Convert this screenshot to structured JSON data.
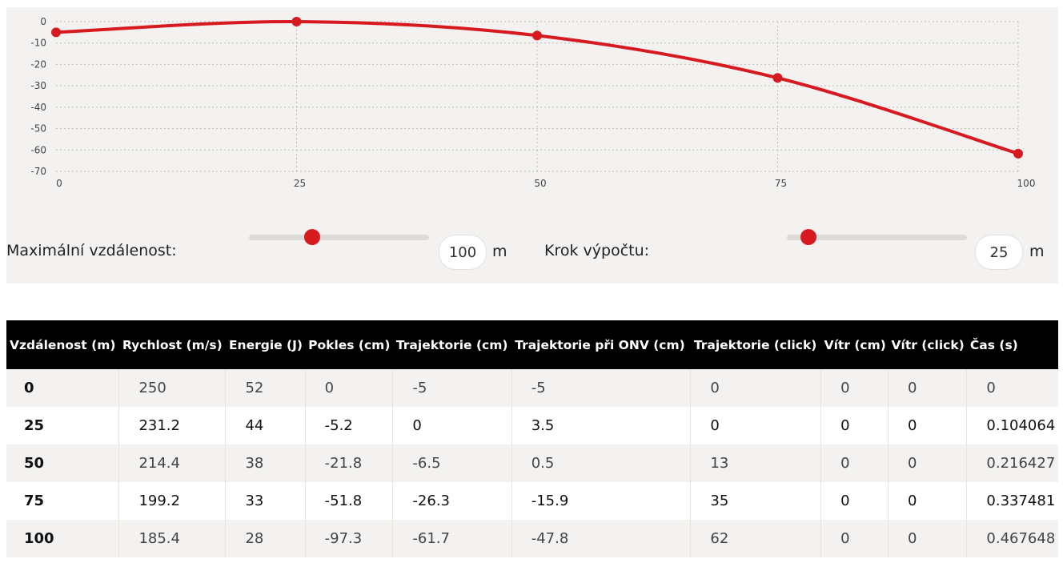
{
  "chart_data": {
    "type": "line",
    "x": [
      0,
      25,
      50,
      75,
      100
    ],
    "series": [
      {
        "values": [
          -5,
          0,
          -6.5,
          -26.3,
          -61.7
        ]
      }
    ],
    "xlim": [
      0,
      100
    ],
    "ylim": [
      -70,
      0
    ],
    "x_ticks": [
      "0",
      "25",
      "50",
      "75",
      "100"
    ],
    "y_ticks": [
      "0",
      "-10",
      "-20",
      "-30",
      "-40",
      "-50",
      "-60",
      "-70"
    ],
    "grid": true,
    "color": "#d71920"
  },
  "controls": {
    "max_distance": {
      "label": "Maximální vzdálenost:",
      "value": "100",
      "unit": "m",
      "slider_fraction": 0.35
    },
    "step": {
      "label": "Krok výpočtu:",
      "value": "25",
      "unit": "m",
      "slider_fraction": 0.12
    }
  },
  "table": {
    "headers": [
      "Vzdálenost (m)",
      "Rychlost (m/s)",
      "Energie (J)",
      "Pokles (cm)",
      "Trajektorie (cm)",
      "Trajektorie při ONV (cm)",
      "Trajektorie (click)",
      "Vítr (cm)",
      "Vítr (click)",
      "Čas (s)"
    ],
    "rows": [
      [
        "0",
        "250",
        "52",
        "0",
        "-5",
        "-5",
        "0",
        "0",
        "0",
        "0"
      ],
      [
        "25",
        "231.2",
        "44",
        "-5.2",
        "0",
        "3.5",
        "0",
        "0",
        "0",
        "0.104064"
      ],
      [
        "50",
        "214.4",
        "38",
        "-21.8",
        "-6.5",
        "0.5",
        "13",
        "0",
        "0",
        "0.216427"
      ],
      [
        "75",
        "199.2",
        "33",
        "-51.8",
        "-26.3",
        "-15.9",
        "35",
        "0",
        "0",
        "0.337481"
      ],
      [
        "100",
        "185.4",
        "28",
        "-97.3",
        "-61.7",
        "-47.8",
        "62",
        "0",
        "0",
        "0.467648"
      ]
    ]
  }
}
